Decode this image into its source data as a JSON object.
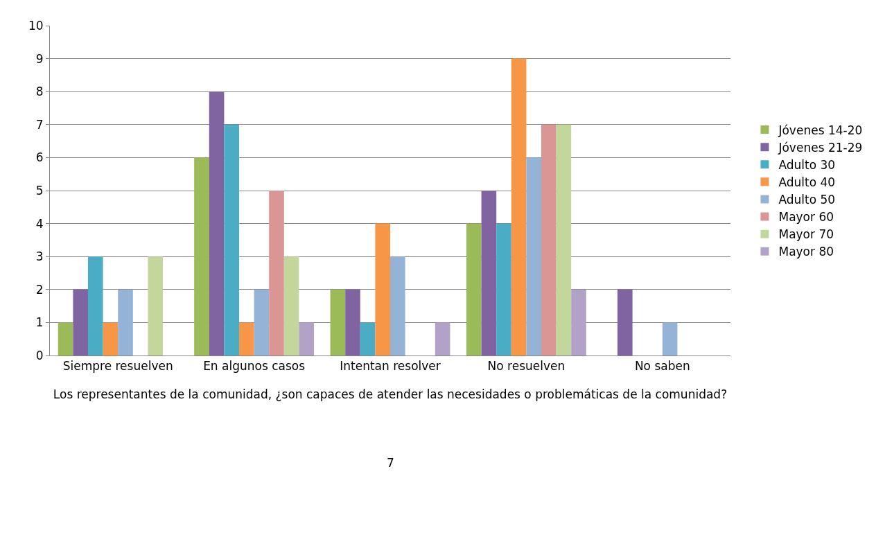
{
  "chart_data": {
    "type": "bar",
    "xlabel": "Los representantes de la comunidad, ¿son capaces de atender las necesidades o problemáticas de la comunidad?",
    "annotations": [
      "7"
    ],
    "categories": [
      "Siempre resuelven",
      "En algunos casos",
      "Intentan resolver",
      "No resuelven",
      "No saben"
    ],
    "series": [
      {
        "name": "Jóvenes 14-20",
        "color": "#9bbb59",
        "values": [
          1,
          6,
          2,
          4,
          0
        ]
      },
      {
        "name": "Jóvenes 21-29",
        "color": "#8064a2",
        "values": [
          2,
          8,
          2,
          5,
          2
        ]
      },
      {
        "name": "Adulto 30",
        "color": "#4bacc6",
        "values": [
          3,
          7,
          1,
          4,
          0
        ]
      },
      {
        "name": "Adulto 40",
        "color": "#f79646",
        "values": [
          1,
          1,
          4,
          9,
          0
        ]
      },
      {
        "name": "Adulto 50",
        "color": "#95b3d7",
        "values": [
          2,
          2,
          3,
          6,
          1
        ]
      },
      {
        "name": "Mayor 60",
        "color": "#d99694",
        "values": [
          0,
          5,
          0,
          7,
          0
        ]
      },
      {
        "name": "Mayor 70",
        "color": "#c3d69b",
        "values": [
          3,
          3,
          0,
          7,
          0
        ]
      },
      {
        "name": "Mayor 80",
        "color": "#b3a2c7",
        "values": [
          0,
          1,
          1,
          2,
          0
        ]
      }
    ],
    "ylim": [
      0,
      10
    ],
    "yticks": [
      0,
      1,
      2,
      3,
      4,
      5,
      6,
      7,
      8,
      9,
      10
    ],
    "grid": "y",
    "legend": "right"
  }
}
